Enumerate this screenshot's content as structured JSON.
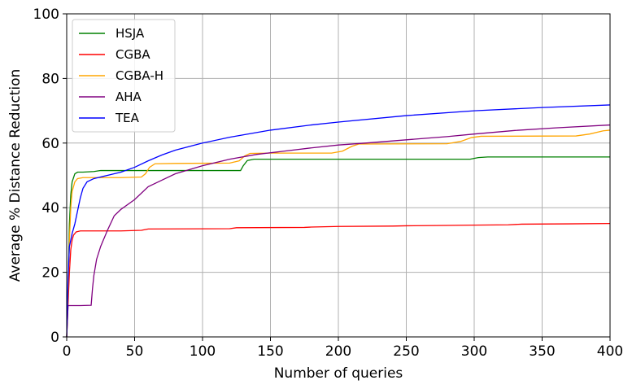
{
  "chart_data": {
    "type": "line",
    "xlabel": "Number of queries",
    "ylabel": "Average % Distance Reduction",
    "xlim": [
      0,
      400
    ],
    "ylim": [
      0,
      100
    ],
    "xticks": [
      "0",
      "50",
      "100",
      "150",
      "200",
      "250",
      "300",
      "350",
      "400"
    ],
    "yticks": [
      "0",
      "20",
      "40",
      "60",
      "80",
      "100"
    ],
    "grid": true,
    "legend_position": "top-left",
    "series": [
      {
        "name": "HSJA",
        "color": "#008000",
        "points": [
          [
            0,
            0
          ],
          [
            1,
            15
          ],
          [
            2,
            35
          ],
          [
            3,
            44
          ],
          [
            4,
            48
          ],
          [
            6,
            50.5
          ],
          [
            8,
            51
          ],
          [
            12,
            51
          ],
          [
            20,
            51.2
          ],
          [
            25,
            51.5
          ],
          [
            60,
            51.5
          ],
          [
            128,
            51.5
          ],
          [
            130,
            53
          ],
          [
            133,
            54.6
          ],
          [
            138,
            55
          ],
          [
            160,
            55
          ],
          [
            250,
            55
          ],
          [
            297,
            55
          ],
          [
            303,
            55.5
          ],
          [
            310,
            55.7
          ],
          [
            400,
            55.7
          ]
        ]
      },
      {
        "name": "CGBA",
        "color": "#ff0000",
        "points": [
          [
            0,
            0
          ],
          [
            1,
            10
          ],
          [
            2,
            20
          ],
          [
            3,
            27
          ],
          [
            4,
            30
          ],
          [
            5,
            31.5
          ],
          [
            7,
            32.5
          ],
          [
            10,
            32.8
          ],
          [
            40,
            32.8
          ],
          [
            55,
            33
          ],
          [
            60,
            33.4
          ],
          [
            120,
            33.5
          ],
          [
            125,
            33.8
          ],
          [
            175,
            33.9
          ],
          [
            180,
            34
          ],
          [
            200,
            34.2
          ],
          [
            240,
            34.3
          ],
          [
            250,
            34.4
          ],
          [
            280,
            34.5
          ],
          [
            300,
            34.6
          ],
          [
            325,
            34.7
          ],
          [
            335,
            34.9
          ],
          [
            370,
            35
          ],
          [
            400,
            35.1
          ]
        ]
      },
      {
        "name": "CGBA-H",
        "color": "#ffa500",
        "points": [
          [
            0,
            0
          ],
          [
            1,
            15
          ],
          [
            2,
            30
          ],
          [
            3,
            40
          ],
          [
            4,
            45
          ],
          [
            6,
            48
          ],
          [
            8,
            49
          ],
          [
            12,
            49.3
          ],
          [
            40,
            49.3
          ],
          [
            55,
            49.5
          ],
          [
            58,
            50.5
          ],
          [
            61,
            52.5
          ],
          [
            65,
            53.6
          ],
          [
            80,
            53.7
          ],
          [
            120,
            53.8
          ],
          [
            127,
            54.5
          ],
          [
            131,
            56
          ],
          [
            135,
            56.8
          ],
          [
            150,
            56.9
          ],
          [
            195,
            56.9
          ],
          [
            203,
            57.5
          ],
          [
            210,
            59
          ],
          [
            215,
            59.7
          ],
          [
            280,
            59.8
          ],
          [
            290,
            60.5
          ],
          [
            298,
            61.7
          ],
          [
            305,
            62.1
          ],
          [
            375,
            62.2
          ],
          [
            385,
            62.8
          ],
          [
            395,
            63.8
          ],
          [
            400,
            64
          ]
        ]
      },
      {
        "name": "AHA",
        "color": "#800080",
        "points": [
          [
            0,
            0
          ],
          [
            1,
            9.7
          ],
          [
            5,
            9.7
          ],
          [
            10,
            9.7
          ],
          [
            18,
            9.8
          ],
          [
            19,
            15
          ],
          [
            20,
            19
          ],
          [
            22,
            24
          ],
          [
            25,
            28
          ],
          [
            30,
            33
          ],
          [
            35,
            37.5
          ],
          [
            40,
            39.5
          ],
          [
            50,
            42.5
          ],
          [
            60,
            46.5
          ],
          [
            70,
            48.5
          ],
          [
            80,
            50.5
          ],
          [
            100,
            53
          ],
          [
            120,
            55
          ],
          [
            140,
            56.5
          ],
          [
            160,
            57.5
          ],
          [
            180,
            58.5
          ],
          [
            200,
            59.4
          ],
          [
            220,
            60
          ],
          [
            250,
            61
          ],
          [
            280,
            62
          ],
          [
            300,
            62.8
          ],
          [
            330,
            63.9
          ],
          [
            360,
            64.7
          ],
          [
            400,
            65.6
          ]
        ]
      },
      {
        "name": "TEA",
        "color": "#0000ff",
        "points": [
          [
            0,
            0
          ],
          [
            1,
            18
          ],
          [
            2,
            28
          ],
          [
            4,
            32
          ],
          [
            6,
            35
          ],
          [
            8,
            39
          ],
          [
            10,
            43
          ],
          [
            12,
            46
          ],
          [
            15,
            48
          ],
          [
            20,
            49
          ],
          [
            30,
            50
          ],
          [
            40,
            51
          ],
          [
            50,
            52.5
          ],
          [
            60,
            54.5
          ],
          [
            70,
            56.3
          ],
          [
            80,
            57.8
          ],
          [
            100,
            60
          ],
          [
            120,
            61.8
          ],
          [
            150,
            64
          ],
          [
            180,
            65.6
          ],
          [
            200,
            66.5
          ],
          [
            250,
            68.5
          ],
          [
            300,
            70
          ],
          [
            350,
            71
          ],
          [
            400,
            71.8
          ]
        ]
      }
    ]
  }
}
